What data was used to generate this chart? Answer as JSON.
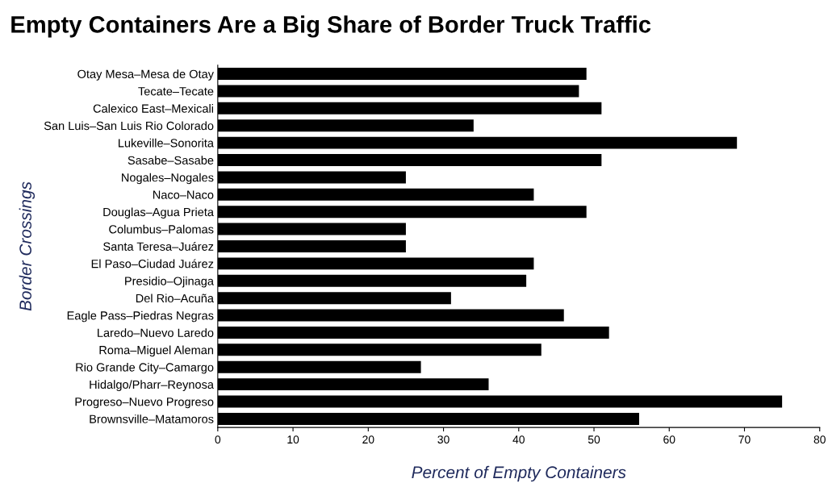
{
  "chart_data": {
    "type": "bar",
    "orientation": "horizontal",
    "title": "Empty Containers Are a Big Share of Border Truck Traffic",
    "xlabel": "Percent of Empty Containers",
    "ylabel": "Border Crossings",
    "categories": [
      "Otay Mesa–Mesa de Otay",
      "Tecate–Tecate",
      "Calexico East–Mexicali",
      "San Luis–San Luis Rio Colorado",
      "Lukeville–Sonorita",
      "Sasabe–Sasabe",
      "Nogales–Nogales",
      "Naco–Naco",
      "Douglas–Agua Prieta",
      "Columbus–Palomas",
      "Santa Teresa–Juárez",
      "El Paso–Ciudad Juárez",
      "Presidio–Ojinaga",
      "Del Rio–Acuña",
      "Eagle Pass–Piedras Negras",
      "Laredo–Nuevo Laredo",
      "Roma–Miguel Aleman",
      "Rio Grande City–Camargo",
      "Hidalgo/Pharr–Reynosa",
      "Progreso–Nuevo Progreso",
      "Brownsville–Matamoros"
    ],
    "values": [
      49,
      48,
      51,
      34,
      69,
      51,
      25,
      42,
      49,
      25,
      25,
      42,
      41,
      31,
      46,
      52,
      43,
      27,
      36,
      75,
      56
    ],
    "color": "#000000",
    "xlim": [
      0,
      80
    ],
    "xticks": [
      0,
      10,
      20,
      30,
      40,
      50,
      60,
      70,
      80
    ],
    "grid": false
  }
}
